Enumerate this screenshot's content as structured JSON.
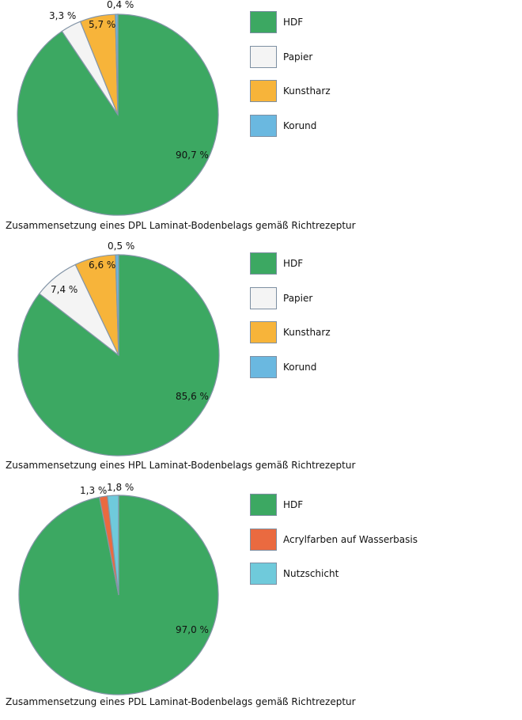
{
  "chart_data": [
    {
      "type": "pie",
      "caption": "Zusammensetzung eines DPL Laminat-Bodenbelags gemäß Richtrezeptur",
      "slices": [
        {
          "name": "HDF",
          "value": 90.7,
          "label": "90,7 %",
          "color": "#3ca862"
        },
        {
          "name": "Papier",
          "value": 3.3,
          "label": "3,3 %",
          "color": "#f4f4f4"
        },
        {
          "name": "Kunstharz",
          "value": 5.7,
          "label": "5,7 %",
          "color": "#f7b43a"
        },
        {
          "name": "Korund",
          "value": 0.4,
          "label": "0,4 %",
          "color": "#6ab8e0"
        }
      ],
      "legend": "right"
    },
    {
      "type": "pie",
      "caption": "Zusammensetzung eines HPL Laminat-Bodenbelags gemäß Richtrezeptur",
      "slices": [
        {
          "name": "HDF",
          "value": 85.6,
          "label": "85,6 %",
          "color": "#3ca862"
        },
        {
          "name": "Papier",
          "value": 7.4,
          "label": "7,4 %",
          "color": "#f4f4f4"
        },
        {
          "name": "Kunstharz",
          "value": 6.6,
          "label": "6,6 %",
          "color": "#f7b43a"
        },
        {
          "name": "Korund",
          "value": 0.5,
          "label": "0,5 %",
          "color": "#6ab8e0"
        }
      ],
      "legend": "right"
    },
    {
      "type": "pie",
      "caption": "Zusammensetzung eines PDL Laminat-Bodenbelags gemäß Richtrezeptur",
      "slices": [
        {
          "name": "HDF",
          "value": 97.0,
          "label": "97,0 %",
          "color": "#3ca862"
        },
        {
          "name": "Acrylfarben auf Wasserbasis",
          "value": 1.3,
          "label": "1,3 %",
          "color": "#ea6a40"
        },
        {
          "name": "Nutzschicht",
          "value": 1.8,
          "label": "1,8 %",
          "color": "#6fcadb"
        }
      ],
      "legend": "right"
    }
  ]
}
